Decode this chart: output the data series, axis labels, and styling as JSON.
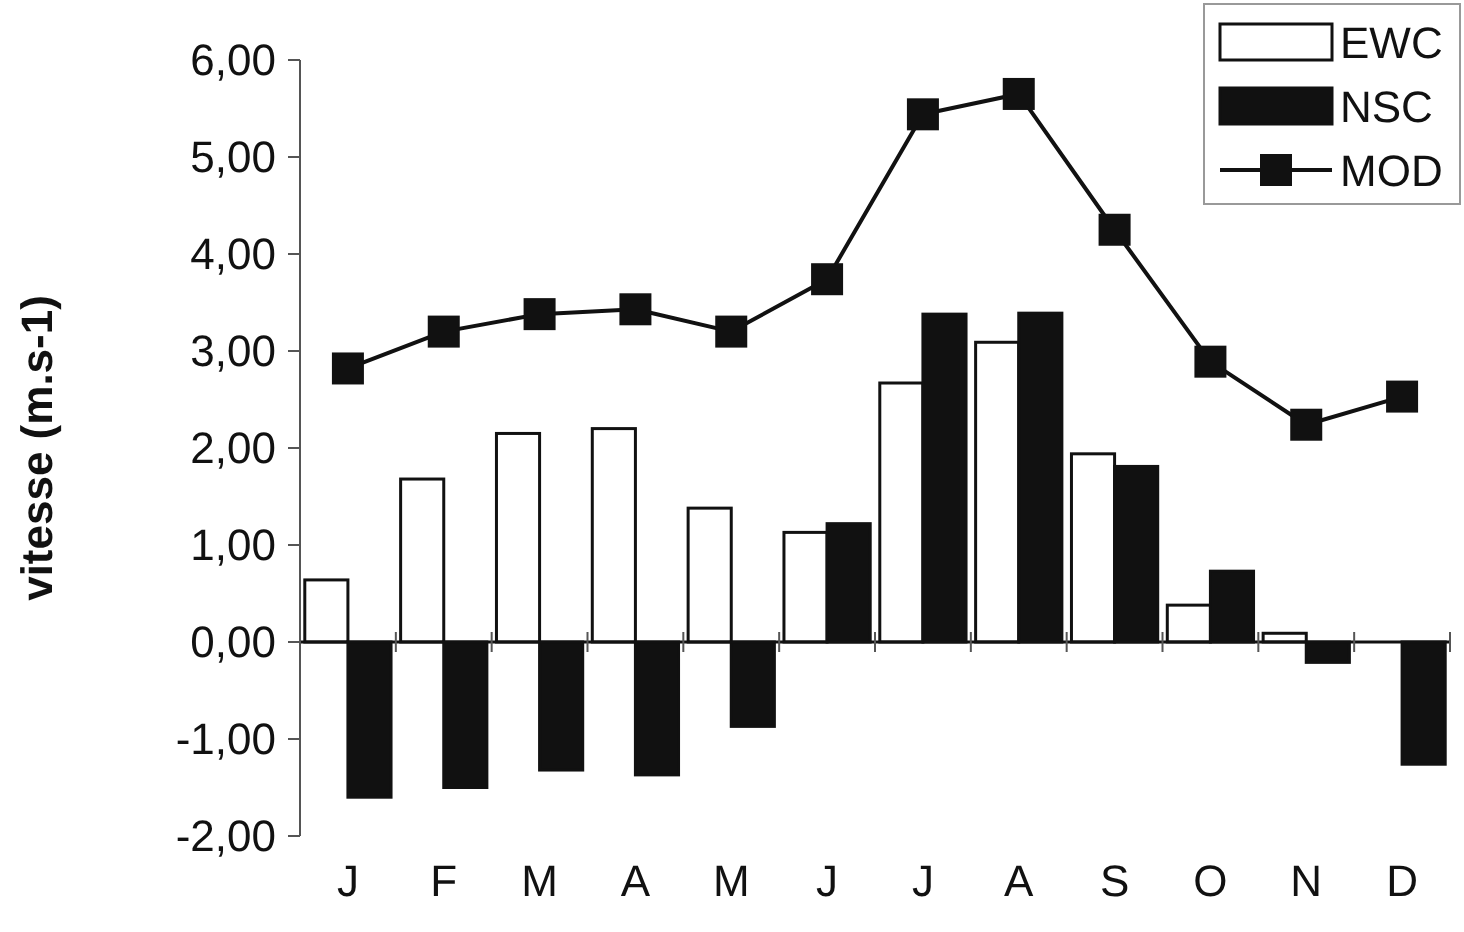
{
  "chart_data": {
    "type": "bar",
    "ylabel": "vitesse (m.s-1)",
    "categories": [
      "J",
      "F",
      "M",
      "A",
      "M",
      "J",
      "J",
      "A",
      "S",
      "O",
      "N",
      "D"
    ],
    "series": [
      {
        "name": "EWC",
        "color": "#ffffff",
        "values": [
          0.64,
          1.68,
          2.15,
          2.2,
          1.38,
          1.13,
          2.67,
          3.09,
          1.94,
          0.38,
          0.09,
          0
        ]
      },
      {
        "name": "NSC",
        "color": "#111111",
        "values": [
          -1.6,
          -1.5,
          -1.32,
          -1.37,
          -0.87,
          1.22,
          3.38,
          3.39,
          1.81,
          0.73,
          -0.21,
          -1.26
        ]
      },
      {
        "name": "MOD",
        "type": "line",
        "color": "#111111",
        "marker": "square",
        "values": [
          2.82,
          3.2,
          3.38,
          3.43,
          3.2,
          3.74,
          5.44,
          5.65,
          4.25,
          2.89,
          2.24,
          2.53
        ]
      }
    ],
    "ylim": [
      -2,
      6
    ],
    "yticks": [
      {
        "value": -2,
        "label": "-2,00"
      },
      {
        "value": -1,
        "label": "-1,00"
      },
      {
        "value": 0,
        "label": "0,00"
      },
      {
        "value": 1,
        "label": "1,00"
      },
      {
        "value": 2,
        "label": "2,00"
      },
      {
        "value": 3,
        "label": "3,00"
      },
      {
        "value": 4,
        "label": "4,00"
      },
      {
        "value": 5,
        "label": "5,00"
      },
      {
        "value": 6,
        "label": "6,00"
      }
    ],
    "legend": "top right"
  }
}
